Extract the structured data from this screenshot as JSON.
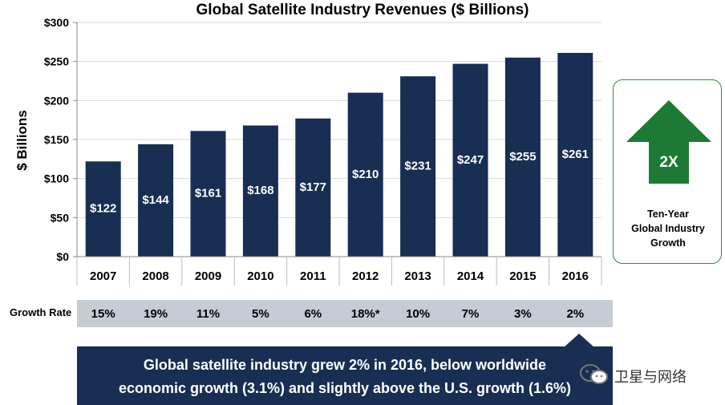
{
  "chart_data": {
    "type": "bar",
    "title": "Global Satellite Industry Revenues ($ Billions)",
    "ylabel": "$ Billions",
    "xlabel": "",
    "categories": [
      "2007",
      "2008",
      "2009",
      "2010",
      "2011",
      "2012",
      "2013",
      "2014",
      "2015",
      "2016"
    ],
    "values": [
      122,
      144,
      161,
      168,
      177,
      210,
      231,
      247,
      255,
      261
    ],
    "data_labels": [
      "$122",
      "$144",
      "$161",
      "$168",
      "$177",
      "$210",
      "$231",
      "$247",
      "$255",
      "$261"
    ],
    "ylim": [
      0,
      300
    ],
    "yticks": [
      0,
      50,
      100,
      150,
      200,
      250,
      300
    ],
    "ytick_labels": [
      "$0",
      "$50",
      "$100",
      "$150",
      "$200",
      "$250",
      "$300"
    ],
    "grid": true,
    "legend": "none",
    "bar_color": "#182e52",
    "grid_color": "#d9d9d9"
  },
  "growth": {
    "label": "Growth Rate",
    "values": [
      "15%",
      "19%",
      "11%",
      "5%",
      "6%",
      "18%*",
      "10%",
      "7%",
      "3%",
      "2%"
    ],
    "band_color": "#c5ccd3"
  },
  "callout": {
    "arrow_label": "2X",
    "text": "Ten-Year\nGlobal Industry\nGrowth",
    "arrow_color": "#1d7a34",
    "border_color": "#2e8b3e"
  },
  "note": {
    "line1": "Global satellite industry grew 2% in 2016, below worldwide",
    "line2": "economic growth (3.1%) and slightly above the U.S. growth (1.6%)",
    "color": "#182e52"
  },
  "watermark": {
    "icon": "wechat-icon",
    "text": "卫星与网络"
  }
}
